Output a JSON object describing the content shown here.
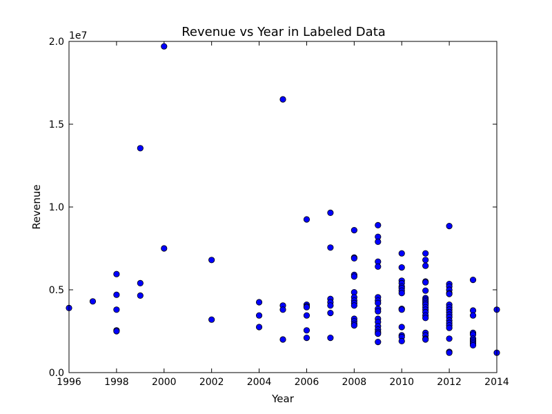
{
  "chart_data": {
    "type": "scatter",
    "title": "Revenue vs Year in Labeled Data",
    "xlabel": "Year",
    "ylabel": "Revenue",
    "offset_label": "1e7",
    "xlim": [
      1996,
      2014
    ],
    "ylim": [
      0,
      20000000
    ],
    "x_ticks": [
      1996,
      1998,
      2000,
      2002,
      2004,
      2006,
      2008,
      2010,
      2012,
      2014
    ],
    "x_tick_labels": [
      "1996",
      "1998",
      "2000",
      "2002",
      "2004",
      "2006",
      "2008",
      "2010",
      "2012",
      "2014"
    ],
    "y_ticks": [
      0,
      5000000,
      10000000,
      15000000,
      20000000
    ],
    "y_tick_labels": [
      "0.0",
      "0.5",
      "1.0",
      "1.5",
      "2.0"
    ],
    "grid": false,
    "marker_color": "#0000ff",
    "marker_edge": "#000000",
    "points": [
      [
        1996,
        3900000
      ],
      [
        1997,
        4300000
      ],
      [
        1998,
        5950000
      ],
      [
        1998,
        4700000
      ],
      [
        1998,
        3800000
      ],
      [
        1998,
        2550000
      ],
      [
        1998,
        2500000
      ],
      [
        1999,
        13550000
      ],
      [
        1999,
        5400000
      ],
      [
        1999,
        4650000
      ],
      [
        2000,
        19700000
      ],
      [
        2000,
        7500000
      ],
      [
        2002,
        6800000
      ],
      [
        2002,
        3200000
      ],
      [
        2004,
        4250000
      ],
      [
        2004,
        3450000
      ],
      [
        2004,
        2750000
      ],
      [
        2005,
        16500000
      ],
      [
        2005,
        4050000
      ],
      [
        2005,
        3800000
      ],
      [
        2005,
        2000000
      ],
      [
        2006,
        9250000
      ],
      [
        2006,
        4100000
      ],
      [
        2006,
        4000000
      ],
      [
        2006,
        3950000
      ],
      [
        2006,
        3450000
      ],
      [
        2006,
        2550000
      ],
      [
        2006,
        2100000
      ],
      [
        2007,
        9650000
      ],
      [
        2007,
        7550000
      ],
      [
        2007,
        4450000
      ],
      [
        2007,
        4250000
      ],
      [
        2007,
        4050000
      ],
      [
        2007,
        3600000
      ],
      [
        2007,
        2100000
      ],
      [
        2008,
        8600000
      ],
      [
        2008,
        6950000
      ],
      [
        2008,
        6900000
      ],
      [
        2008,
        5900000
      ],
      [
        2008,
        5800000
      ],
      [
        2008,
        4850000
      ],
      [
        2008,
        4550000
      ],
      [
        2008,
        4350000
      ],
      [
        2008,
        4200000
      ],
      [
        2008,
        4050000
      ],
      [
        2008,
        3250000
      ],
      [
        2008,
        3100000
      ],
      [
        2008,
        2950000
      ],
      [
        2008,
        2850000
      ],
      [
        2009,
        8900000
      ],
      [
        2009,
        8200000
      ],
      [
        2009,
        7900000
      ],
      [
        2009,
        6700000
      ],
      [
        2009,
        6400000
      ],
      [
        2009,
        4550000
      ],
      [
        2009,
        4350000
      ],
      [
        2009,
        4200000
      ],
      [
        2009,
        3850000
      ],
      [
        2009,
        3700000
      ],
      [
        2009,
        3250000
      ],
      [
        2009,
        3050000
      ],
      [
        2009,
        2800000
      ],
      [
        2009,
        2600000
      ],
      [
        2009,
        2450000
      ],
      [
        2009,
        2350000
      ],
      [
        2009,
        1850000
      ],
      [
        2010,
        7200000
      ],
      [
        2010,
        6350000
      ],
      [
        2010,
        5550000
      ],
      [
        2010,
        5400000
      ],
      [
        2010,
        5200000
      ],
      [
        2010,
        5100000
      ],
      [
        2010,
        4950000
      ],
      [
        2010,
        4800000
      ],
      [
        2010,
        3850000
      ],
      [
        2010,
        3800000
      ],
      [
        2010,
        2750000
      ],
      [
        2010,
        2250000
      ],
      [
        2010,
        2150000
      ],
      [
        2010,
        1900000
      ],
      [
        2011,
        7200000
      ],
      [
        2011,
        6800000
      ],
      [
        2011,
        6450000
      ],
      [
        2011,
        5500000
      ],
      [
        2011,
        5450000
      ],
      [
        2011,
        4950000
      ],
      [
        2011,
        4500000
      ],
      [
        2011,
        4400000
      ],
      [
        2011,
        4300000
      ],
      [
        2011,
        4200000
      ],
      [
        2011,
        4100000
      ],
      [
        2011,
        3950000
      ],
      [
        2011,
        3800000
      ],
      [
        2011,
        3650000
      ],
      [
        2011,
        3450000
      ],
      [
        2011,
        3300000
      ],
      [
        2011,
        2400000
      ],
      [
        2011,
        2250000
      ],
      [
        2011,
        2050000
      ],
      [
        2011,
        2000000
      ],
      [
        2012,
        8850000
      ],
      [
        2012,
        5350000
      ],
      [
        2012,
        5200000
      ],
      [
        2012,
        5000000
      ],
      [
        2012,
        4800000
      ],
      [
        2012,
        4750000
      ],
      [
        2012,
        4100000
      ],
      [
        2012,
        3950000
      ],
      [
        2012,
        3800000
      ],
      [
        2012,
        3650000
      ],
      [
        2012,
        3500000
      ],
      [
        2012,
        3350000
      ],
      [
        2012,
        3150000
      ],
      [
        2012,
        3000000
      ],
      [
        2012,
        2850000
      ],
      [
        2012,
        2700000
      ],
      [
        2012,
        2050000
      ],
      [
        2012,
        1250000
      ],
      [
        2012,
        1200000
      ],
      [
        2013,
        5600000
      ],
      [
        2013,
        3750000
      ],
      [
        2013,
        3450000
      ],
      [
        2013,
        2400000
      ],
      [
        2013,
        2300000
      ],
      [
        2013,
        2050000
      ],
      [
        2013,
        1950000
      ],
      [
        2013,
        1850000
      ],
      [
        2013,
        1750000
      ],
      [
        2013,
        1650000
      ],
      [
        2014,
        3800000
      ],
      [
        2014,
        1200000
      ]
    ]
  }
}
